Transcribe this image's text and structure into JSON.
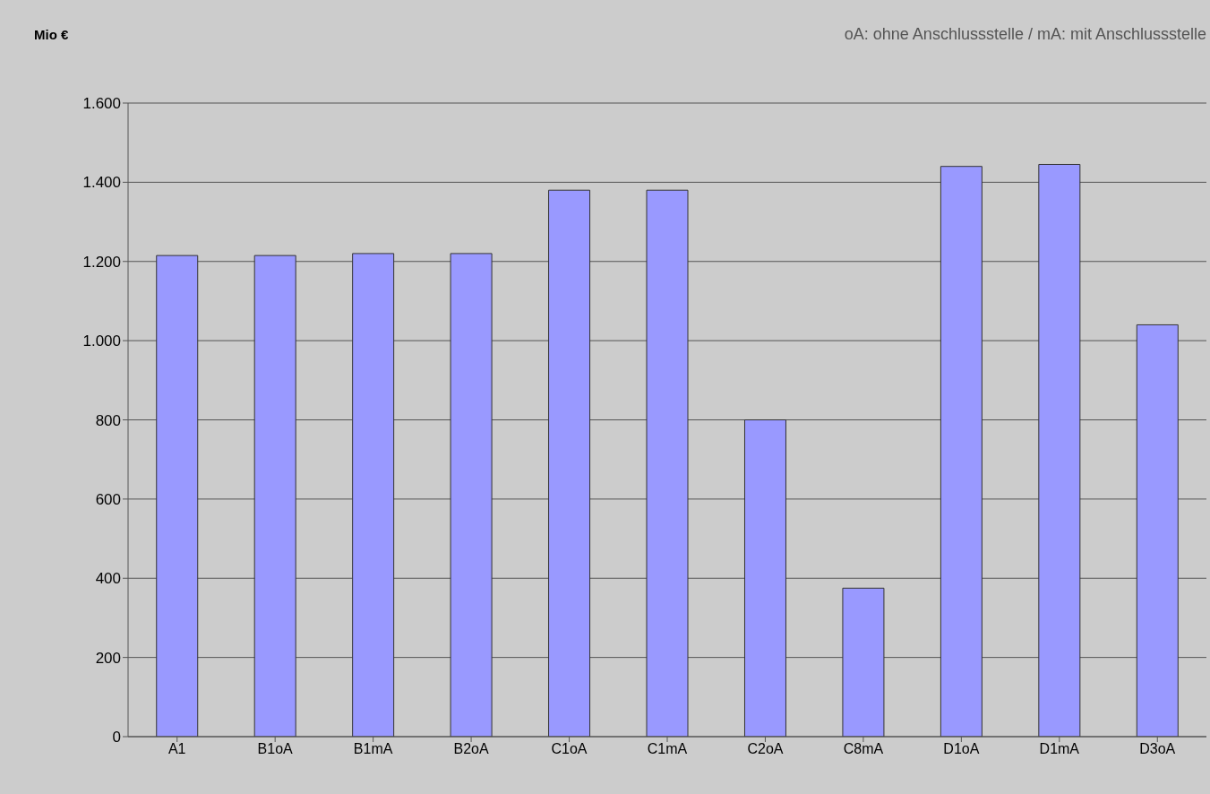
{
  "chart_data": {
    "type": "bar",
    "ylabel": "Mio €",
    "annotations": [
      "oA: ohne Anschlussstelle / mA: mit Anschlussstelle"
    ],
    "categories": [
      "A1",
      "B1oA",
      "B1mA",
      "B2oA",
      "C1oA",
      "C1mA",
      "C2oA",
      "C8mA",
      "D1oA",
      "D1mA",
      "D3oA"
    ],
    "values": [
      1215,
      1215,
      1220,
      1220,
      1380,
      1380,
      800,
      375,
      1440,
      1445,
      1040
    ],
    "color": "#9999ff",
    "ylim": [
      0,
      1600
    ],
    "yticks": [
      {
        "value": 0,
        "label": "0"
      },
      {
        "value": 200,
        "label": "200"
      },
      {
        "value": 400,
        "label": "400"
      },
      {
        "value": 600,
        "label": "600"
      },
      {
        "value": 800,
        "label": "800"
      },
      {
        "value": 1000,
        "label": "1.000"
      },
      {
        "value": 1200,
        "label": "1.200"
      },
      {
        "value": 1400,
        "label": "1.400"
      },
      {
        "value": 1600,
        "label": "1.600"
      }
    ],
    "grid": "y"
  }
}
